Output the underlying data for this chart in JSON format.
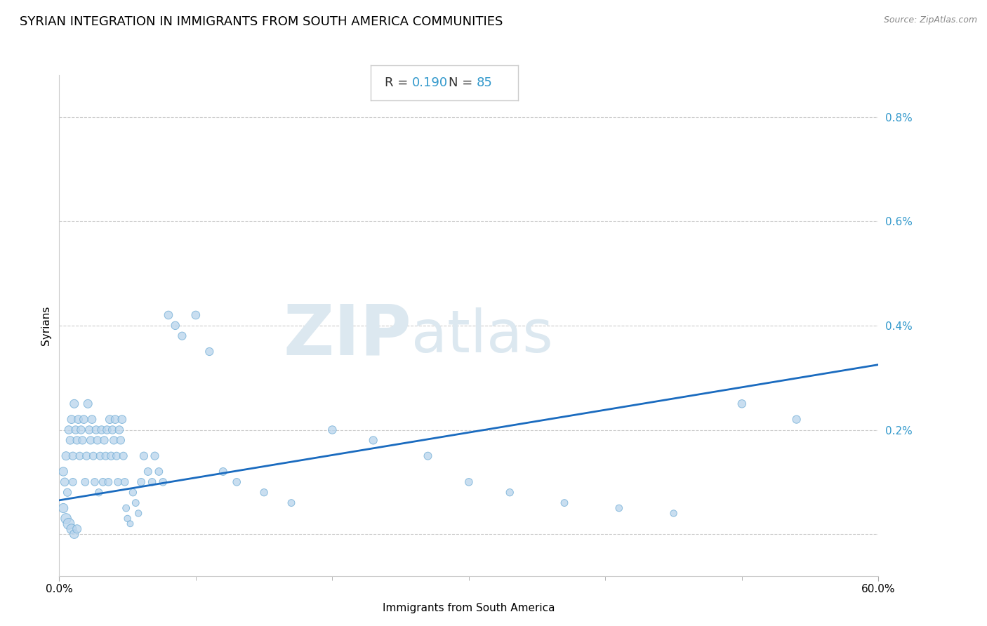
{
  "title": "SYRIAN INTEGRATION IN IMMIGRANTS FROM SOUTH AMERICA COMMUNITIES",
  "source": "Source: ZipAtlas.com",
  "xlabel": "Immigrants from South America",
  "ylabel": "Syrians",
  "R": 0.19,
  "N": 85,
  "xlim": [
    0.0,
    0.6
  ],
  "ylim": [
    -0.0008,
    0.0088
  ],
  "scatter_color": "#b8d4ec",
  "scatter_edge_color": "#6baad4",
  "scatter_alpha": 0.75,
  "line_color": "#1a6bbf",
  "watermark_color": "#dce8f0",
  "title_fontsize": 13,
  "label_fontsize": 11,
  "tick_fontsize": 11,
  "annotation_fontsize": 14,
  "points_x": [
    0.003,
    0.004,
    0.005,
    0.006,
    0.007,
    0.008,
    0.009,
    0.01,
    0.01,
    0.011,
    0.012,
    0.013,
    0.014,
    0.015,
    0.016,
    0.017,
    0.018,
    0.019,
    0.02,
    0.021,
    0.022,
    0.023,
    0.024,
    0.025,
    0.026,
    0.027,
    0.028,
    0.029,
    0.03,
    0.031,
    0.032,
    0.033,
    0.034,
    0.035,
    0.036,
    0.037,
    0.038,
    0.039,
    0.04,
    0.041,
    0.042,
    0.043,
    0.044,
    0.045,
    0.046,
    0.047,
    0.048,
    0.049,
    0.05,
    0.052,
    0.054,
    0.056,
    0.058,
    0.06,
    0.062,
    0.065,
    0.068,
    0.07,
    0.073,
    0.076,
    0.08,
    0.085,
    0.09,
    0.1,
    0.11,
    0.12,
    0.13,
    0.15,
    0.17,
    0.2,
    0.23,
    0.27,
    0.3,
    0.33,
    0.37,
    0.41,
    0.45,
    0.5,
    0.54,
    0.003,
    0.005,
    0.007,
    0.009,
    0.011,
    0.013
  ],
  "points_y": [
    0.0012,
    0.001,
    0.0015,
    0.0008,
    0.002,
    0.0018,
    0.0022,
    0.0015,
    0.001,
    0.0025,
    0.002,
    0.0018,
    0.0022,
    0.0015,
    0.002,
    0.0018,
    0.0022,
    0.001,
    0.0015,
    0.0025,
    0.002,
    0.0018,
    0.0022,
    0.0015,
    0.001,
    0.002,
    0.0018,
    0.0008,
    0.0015,
    0.002,
    0.001,
    0.0018,
    0.0015,
    0.002,
    0.001,
    0.0022,
    0.0015,
    0.002,
    0.0018,
    0.0022,
    0.0015,
    0.001,
    0.002,
    0.0018,
    0.0022,
    0.0015,
    0.001,
    0.0005,
    0.0003,
    0.0002,
    0.0008,
    0.0006,
    0.0004,
    0.001,
    0.0015,
    0.0012,
    0.001,
    0.0015,
    0.0012,
    0.001,
    0.0042,
    0.004,
    0.0038,
    0.0042,
    0.0035,
    0.0012,
    0.001,
    0.0008,
    0.0006,
    0.002,
    0.0018,
    0.0015,
    0.001,
    0.0008,
    0.0006,
    0.0005,
    0.0004,
    0.0025,
    0.0022,
    0.0005,
    0.0003,
    0.0002,
    0.0001,
    0.0,
    0.0001
  ],
  "sizes": [
    80,
    70,
    75,
    65,
    70,
    68,
    72,
    65,
    60,
    75,
    68,
    65,
    70,
    62,
    68,
    65,
    70,
    60,
    65,
    75,
    68,
    65,
    70,
    62,
    58,
    68,
    65,
    55,
    62,
    68,
    60,
    65,
    62,
    68,
    60,
    72,
    65,
    68,
    65,
    70,
    62,
    58,
    68,
    65,
    70,
    62,
    58,
    50,
    45,
    40,
    55,
    50,
    45,
    60,
    65,
    62,
    58,
    65,
    60,
    58,
    70,
    68,
    65,
    70,
    65,
    62,
    58,
    55,
    50,
    68,
    65,
    62,
    58,
    55,
    50,
    48,
    45,
    68,
    65,
    90,
    110,
    130,
    100,
    80,
    75
  ],
  "line_x": [
    0.0,
    0.6
  ],
  "line_y": [
    0.00065,
    0.00325
  ]
}
